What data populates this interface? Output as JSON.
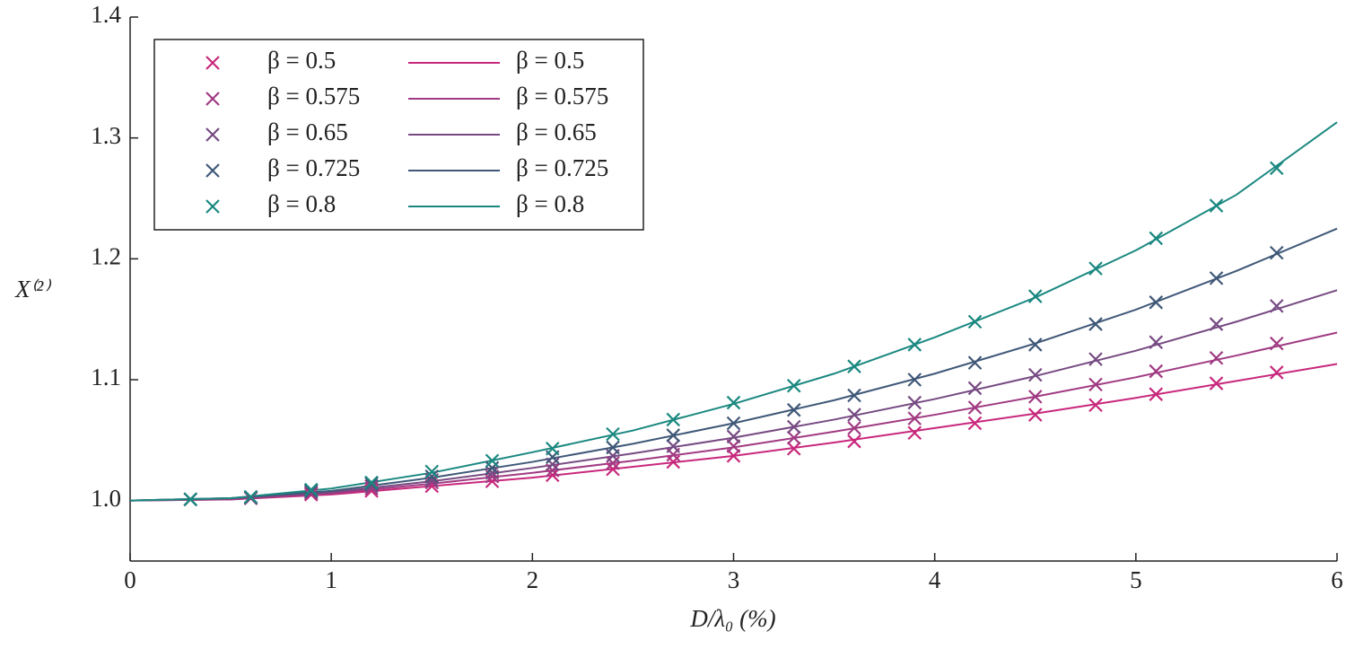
{
  "chart_data": {
    "type": "line",
    "xlabel": "D/λ₀ (%)",
    "ylabel": "X⁽²⁾",
    "xlim": [
      0,
      6
    ],
    "ylim": [
      0.95,
      1.4
    ],
    "xticks": [
      0,
      1,
      2,
      3,
      4,
      5,
      6
    ],
    "yticks": [
      {
        "value": 1,
        "label": "1.0"
      },
      1.1,
      1.2,
      1.3,
      1.4
    ],
    "series": [
      {
        "name": "β = 0.5",
        "kind": "scatter",
        "color": "#c8287c",
        "x": [
          0.3,
          0.6,
          0.9,
          1.2,
          1.5,
          1.8,
          2.1,
          2.4,
          2.7,
          3.0,
          3.3,
          3.6,
          3.9,
          4.2,
          4.5,
          4.8,
          5.1,
          5.4,
          5.7
        ],
        "values": [
          1.001,
          1.002,
          1.005,
          1.008,
          1.012,
          1.016,
          1.021,
          1.026,
          1.032,
          1.037,
          1.043,
          1.049,
          1.056,
          1.064,
          1.071,
          1.079,
          1.088,
          1.097,
          1.106
        ]
      },
      {
        "name": "β = 0.575",
        "kind": "scatter",
        "color": "#a03a82",
        "x": [
          0.3,
          0.6,
          0.9,
          1.2,
          1.5,
          1.8,
          2.1,
          2.4,
          2.7,
          3.0,
          3.3,
          3.6,
          3.9,
          4.2,
          4.5,
          4.8,
          5.1,
          5.4,
          5.7
        ],
        "values": [
          1.001,
          1.002,
          1.006,
          1.01,
          1.015,
          1.02,
          1.025,
          1.031,
          1.038,
          1.045,
          1.052,
          1.06,
          1.068,
          1.077,
          1.086,
          1.096,
          1.107,
          1.118,
          1.13
        ]
      },
      {
        "name": "β = 0.65",
        "kind": "scatter",
        "color": "#764a82",
        "x": [
          0.3,
          0.6,
          0.9,
          1.2,
          1.5,
          1.8,
          2.1,
          2.4,
          2.7,
          3.0,
          3.3,
          3.6,
          3.9,
          4.2,
          4.5,
          4.8,
          5.1,
          5.4,
          5.7
        ],
        "values": [
          1.001,
          1.002,
          1.007,
          1.012,
          1.017,
          1.023,
          1.03,
          1.037,
          1.045,
          1.053,
          1.061,
          1.071,
          1.081,
          1.093,
          1.104,
          1.117,
          1.131,
          1.146,
          1.161
        ]
      },
      {
        "name": "β = 0.725",
        "kind": "scatter",
        "color": "#3f5878",
        "x": [
          0.3,
          0.6,
          0.9,
          1.2,
          1.5,
          1.8,
          2.1,
          2.4,
          2.7,
          3.0,
          3.3,
          3.6,
          3.9,
          4.2,
          4.5,
          4.8,
          5.1,
          5.4,
          5.7
        ],
        "values": [
          1.001,
          1.003,
          1.008,
          1.014,
          1.02,
          1.027,
          1.036,
          1.044,
          1.054,
          1.064,
          1.075,
          1.087,
          1.1,
          1.114,
          1.129,
          1.146,
          1.164,
          1.184,
          1.205
        ]
      },
      {
        "name": "β = 0.8",
        "kind": "scatter",
        "color": "#1a8880",
        "x": [
          0.3,
          0.6,
          0.9,
          1.2,
          1.5,
          1.8,
          2.1,
          2.4,
          2.7,
          3.0,
          3.3,
          3.6,
          3.9,
          4.2,
          4.5,
          4.8,
          5.1,
          5.4,
          5.7
        ],
        "values": [
          1.001,
          1.003,
          1.009,
          1.015,
          1.024,
          1.033,
          1.043,
          1.055,
          1.067,
          1.081,
          1.095,
          1.111,
          1.129,
          1.148,
          1.169,
          1.192,
          1.217,
          1.244,
          1.275
        ]
      },
      {
        "name": "β = 0.5",
        "kind": "line",
        "color": "#c8287c",
        "x": [
          0,
          0.5,
          1,
          1.5,
          2,
          2.5,
          3,
          3.5,
          4,
          4.5,
          5,
          5.5,
          6
        ],
        "values": [
          1.0,
          1.001,
          1.005,
          1.012,
          1.019,
          1.028,
          1.037,
          1.048,
          1.06,
          1.072,
          1.085,
          1.099,
          1.113
        ]
      },
      {
        "name": "β = 0.575",
        "kind": "line",
        "color": "#a03a82",
        "x": [
          0,
          0.5,
          1,
          1.5,
          2,
          2.5,
          3,
          3.5,
          4,
          4.5,
          5,
          5.5,
          6
        ],
        "values": [
          1.0,
          1.001,
          1.006,
          1.014,
          1.023,
          1.033,
          1.044,
          1.057,
          1.071,
          1.086,
          1.102,
          1.12,
          1.139
        ]
      },
      {
        "name": "β = 0.65",
        "kind": "line",
        "color": "#764a82",
        "x": [
          0,
          0.5,
          1,
          1.5,
          2,
          2.5,
          3,
          3.5,
          4,
          4.5,
          5,
          5.5,
          6
        ],
        "values": [
          1.0,
          1.002,
          1.007,
          1.016,
          1.027,
          1.039,
          1.052,
          1.067,
          1.084,
          1.103,
          1.124,
          1.148,
          1.174
        ]
      },
      {
        "name": "β = 0.725",
        "kind": "line",
        "color": "#3f5878",
        "x": [
          0,
          0.5,
          1,
          1.5,
          2,
          2.5,
          3,
          3.5,
          4,
          4.5,
          5,
          5.5,
          6
        ],
        "values": [
          1.0,
          1.002,
          1.008,
          1.019,
          1.032,
          1.047,
          1.064,
          1.083,
          1.105,
          1.13,
          1.158,
          1.19,
          1.225
        ]
      },
      {
        "name": "β = 0.8",
        "kind": "line",
        "color": "#1a8880",
        "x": [
          0,
          0.5,
          1,
          1.5,
          2,
          2.5,
          3,
          3.5,
          4,
          4.5,
          5,
          5.5,
          6
        ],
        "values": [
          1.0,
          1.002,
          1.01,
          1.023,
          1.04,
          1.058,
          1.08,
          1.105,
          1.135,
          1.168,
          1.207,
          1.253,
          1.313
        ]
      }
    ]
  }
}
